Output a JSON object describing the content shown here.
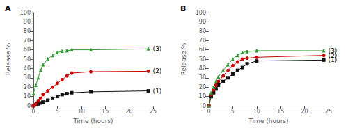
{
  "chart_data": [
    {
      "type": "line",
      "title": "A",
      "xlabel": "Time (hours)",
      "ylabel": "Release %",
      "x": [
        0,
        0.5,
        1,
        1.5,
        2,
        3,
        4,
        5,
        6,
        7,
        8,
        12,
        24
      ],
      "series": [
        {
          "name": "(1)",
          "color": "#111111",
          "marker": "square",
          "line_style": "solid",
          "values": [
            0,
            1,
            2,
            3,
            4,
            6,
            8,
            10,
            12,
            13,
            14,
            15,
            16
          ],
          "yerr": [
            0,
            0.3,
            0.3,
            0.3,
            0.4,
            0.5,
            0.5,
            0.5,
            0.6,
            0.6,
            0.5,
            0.5,
            0.6
          ]
        },
        {
          "name": "(2)",
          "color": "#cc0000",
          "marker": "circle",
          "line_style": "solid",
          "values": [
            0,
            2,
            5,
            8,
            12,
            16,
            20,
            24,
            28,
            32,
            35,
            36.5,
            37
          ],
          "yerr": [
            0,
            0.4,
            0.5,
            0.6,
            0.7,
            0.8,
            0.9,
            1.0,
            1.0,
            1.0,
            1.0,
            0.9,
            0.9
          ]
        },
        {
          "name": "(3)",
          "color": "#339933",
          "marker": "triangle",
          "line_style": "solid",
          "values": [
            13,
            22,
            30,
            38,
            44,
            50,
            54,
            57,
            58.5,
            59,
            60,
            60,
            61
          ],
          "yerr": [
            0.5,
            0.8,
            1.0,
            1.2,
            1.3,
            1.4,
            1.4,
            1.3,
            1.2,
            1.1,
            1.0,
            1.0,
            1.0
          ]
        }
      ],
      "xlim": [
        0,
        25
      ],
      "ylim": [
        0,
        100
      ],
      "xticks": [
        0,
        5,
        10,
        15,
        20,
        25
      ],
      "yticks": [
        0,
        10,
        20,
        30,
        40,
        50,
        60,
        70,
        80,
        90,
        100
      ],
      "grid": false
    },
    {
      "type": "line",
      "title": "B",
      "xlabel": "Time (hours)",
      "ylabel": "Release %",
      "x": [
        0,
        0.5,
        1,
        1.5,
        2,
        3,
        4,
        5,
        6,
        7,
        8,
        10,
        24
      ],
      "series": [
        {
          "name": "(1)",
          "color": "#111111",
          "marker": "square",
          "line_style": "solid",
          "values": [
            0,
            10,
            14,
            18,
            22,
            26,
            30,
            34,
            38,
            41,
            45,
            48,
            49
          ],
          "yerr": [
            0,
            0.5,
            0.5,
            0.6,
            0.7,
            0.7,
            0.8,
            0.8,
            0.9,
            0.9,
            1.0,
            1.0,
            1.0
          ]
        },
        {
          "name": "(2)",
          "color": "#cc0000",
          "marker": "circle",
          "line_style": "solid",
          "values": [
            0,
            12,
            17,
            22,
            26,
            32,
            38,
            43,
            47,
            50,
            51,
            52,
            54
          ],
          "yerr": [
            0,
            0.5,
            0.6,
            0.7,
            0.8,
            0.9,
            1.0,
            1.1,
            1.1,
            1.1,
            1.1,
            1.1,
            1.1
          ]
        },
        {
          "name": "(3)",
          "color": "#339933",
          "marker": "triangle",
          "line_style": "solid",
          "values": [
            0,
            14,
            20,
            26,
            31,
            38,
            44,
            50,
            54,
            57,
            58,
            59,
            59
          ],
          "yerr": [
            0,
            0.6,
            0.7,
            0.8,
            0.9,
            1.0,
            1.1,
            1.2,
            1.2,
            1.2,
            1.2,
            1.2,
            1.2
          ]
        }
      ],
      "xlim": [
        0,
        25
      ],
      "ylim": [
        0,
        100
      ],
      "xticks": [
        0,
        5,
        10,
        15,
        20,
        25
      ],
      "yticks": [
        0,
        10,
        20,
        30,
        40,
        50,
        60,
        70,
        80,
        90,
        100
      ],
      "grid": false
    }
  ]
}
